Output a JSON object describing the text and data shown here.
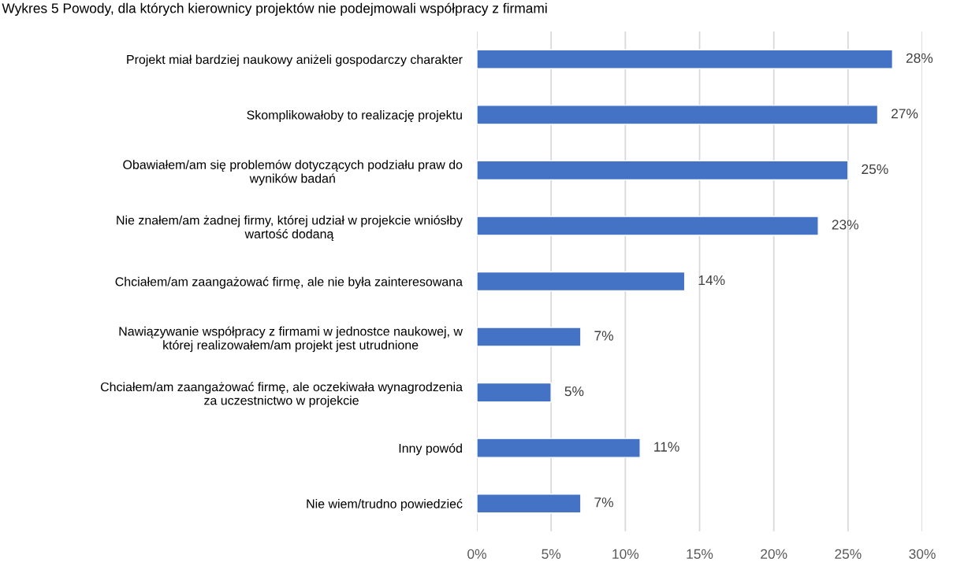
{
  "chart_data": {
    "type": "bar",
    "orientation": "horizontal",
    "title": "Wykres 5 Powody, dla których kierownicy projektów nie podejmowali współpracy z firmami",
    "categories": [
      "Projekt miał bardziej naukowy aniżeli gospodarczy charakter",
      "Skomplikowałoby to realizację projektu",
      "Obawiałem/am się problemów dotyczących podziału praw do\nwyników badań",
      "Nie znałem/am żadnej firmy, której udział w projekcie wniósłby\nwartość dodaną",
      "Chciałem/am zaangażować firmę, ale nie była zainteresowana",
      "Nawiązywanie współpracy z firmami w jednostce naukowej, w\nktórej realizowałem/am projekt jest utrudnione",
      "Chciałem/am zaangażować firmę, ale oczekiwała wynagrodzenia\nza uczestnictwo w projekcie",
      "Inny powód",
      "Nie wiem/trudno powiedzieć"
    ],
    "values": [
      28,
      27,
      25,
      23,
      14,
      7,
      5,
      11,
      7
    ],
    "value_labels": [
      "28%",
      "27%",
      "25%",
      "23%",
      "14%",
      "7%",
      "5%",
      "11%",
      "7%"
    ],
    "color": "#4472c4",
    "xlim": [
      0,
      30
    ],
    "xticks": [
      {
        "value": 0,
        "label": "0%"
      },
      {
        "value": 5,
        "label": "5%"
      },
      {
        "value": 10,
        "label": "10%"
      },
      {
        "value": 15,
        "label": "15%"
      },
      {
        "value": 20,
        "label": "20%"
      },
      {
        "value": 25,
        "label": "25%"
      },
      {
        "value": 30,
        "label": "30%"
      }
    ],
    "grid": "x"
  }
}
